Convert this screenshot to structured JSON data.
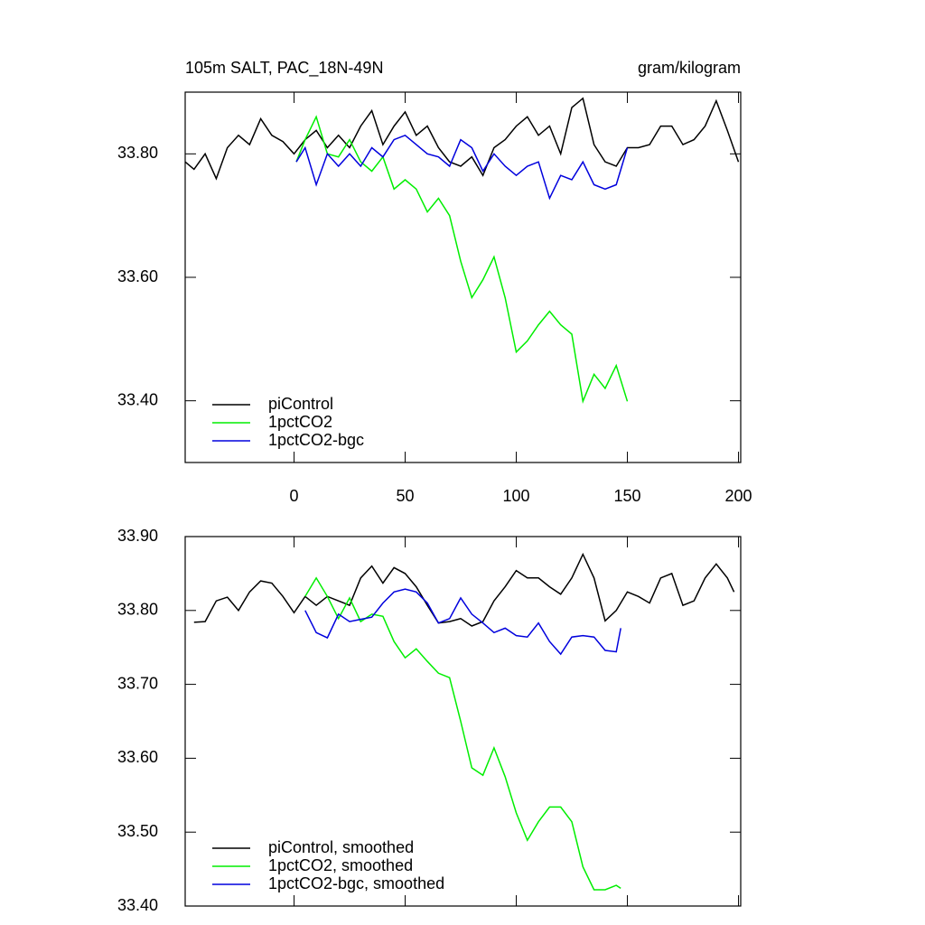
{
  "chart_data": [
    {
      "type": "line",
      "title": "105m SALT, PAC_18N-49N",
      "right_title": "gram/kilogram",
      "xlim": [
        -49,
        201
      ],
      "ylim": [
        33.3,
        33.9
      ],
      "xticks": [
        0,
        50,
        100,
        150,
        200
      ],
      "xtick_labels": true,
      "yticks": [
        {
          "value": 33.4,
          "label": "33.40"
        },
        {
          "value": 33.6,
          "label": "33.60"
        },
        {
          "value": 33.8,
          "label": "33.80"
        }
      ],
      "legend": "lower left",
      "series": [
        {
          "name": "piControl",
          "color": "#000000",
          "x": [
            -49,
            -45,
            -40,
            -35,
            -30,
            -25,
            -20,
            -15,
            -10,
            -5,
            0,
            5,
            10,
            15,
            20,
            25,
            30,
            35,
            40,
            45,
            50,
            55,
            60,
            65,
            70,
            75,
            80,
            85,
            90,
            95,
            100,
            105,
            110,
            115,
            120,
            125,
            130,
            135,
            140,
            145,
            150,
            155,
            160,
            165,
            170,
            175,
            180,
            185,
            190,
            195,
            200
          ],
          "values": [
            33.787,
            33.775,
            33.8,
            33.76,
            33.81,
            33.83,
            33.815,
            33.857,
            33.83,
            33.82,
            33.8,
            33.823,
            33.838,
            33.81,
            33.83,
            33.81,
            33.845,
            33.87,
            33.815,
            33.845,
            33.868,
            33.83,
            33.845,
            33.81,
            33.787,
            33.78,
            33.795,
            33.765,
            33.81,
            33.823,
            33.845,
            33.86,
            33.83,
            33.845,
            33.8,
            33.875,
            33.89,
            33.815,
            33.787,
            33.78,
            33.81,
            33.81,
            33.815,
            33.845,
            33.845,
            33.815,
            33.823,
            33.845,
            33.886,
            33.838,
            33.787
          ]
        },
        {
          "name": "1pctCO2",
          "color": "#00ee00",
          "x": [
            1,
            5,
            10,
            15,
            20,
            25,
            30,
            35,
            40,
            45,
            50,
            55,
            60,
            65,
            70,
            75,
            80,
            85,
            90,
            95,
            100,
            105,
            110,
            115,
            120,
            125,
            130,
            135,
            140,
            145,
            150
          ],
          "values": [
            33.787,
            33.823,
            33.86,
            33.8,
            33.795,
            33.823,
            33.787,
            33.772,
            33.795,
            33.743,
            33.758,
            33.743,
            33.706,
            33.728,
            33.7,
            33.626,
            33.567,
            33.596,
            33.633,
            33.567,
            33.479,
            33.497,
            33.523,
            33.545,
            33.523,
            33.508,
            33.399,
            33.443,
            33.42,
            33.457,
            33.399
          ]
        },
        {
          "name": "1pctCO2-bgc",
          "color": "#0000dd",
          "x": [
            1,
            5,
            10,
            15,
            20,
            25,
            30,
            35,
            40,
            45,
            50,
            55,
            60,
            65,
            70,
            75,
            80,
            85,
            90,
            95,
            100,
            105,
            110,
            115,
            120,
            125,
            130,
            135,
            140,
            145,
            150
          ],
          "values": [
            33.787,
            33.81,
            33.75,
            33.8,
            33.78,
            33.8,
            33.78,
            33.81,
            33.795,
            33.823,
            33.83,
            33.815,
            33.8,
            33.795,
            33.78,
            33.823,
            33.81,
            33.772,
            33.8,
            33.78,
            33.765,
            33.78,
            33.787,
            33.728,
            33.765,
            33.758,
            33.787,
            33.75,
            33.743,
            33.75,
            33.81
          ]
        }
      ]
    },
    {
      "type": "line",
      "xlim": [
        -49,
        201
      ],
      "ylim": [
        33.4,
        33.9
      ],
      "xticks": [
        0,
        50,
        100,
        150,
        200
      ],
      "xtick_labels": false,
      "yticks": [
        {
          "value": 33.4,
          "label": "33.40"
        },
        {
          "value": 33.5,
          "label": "33.50"
        },
        {
          "value": 33.6,
          "label": "33.60"
        },
        {
          "value": 33.7,
          "label": "33.70"
        },
        {
          "value": 33.8,
          "label": "33.80"
        },
        {
          "value": 33.9,
          "label": "33.90"
        }
      ],
      "legend": "lower left",
      "series": [
        {
          "name": "piControl, smoothed",
          "color": "#000000",
          "x": [
            -45,
            -40,
            -35,
            -30,
            -25,
            -20,
            -15,
            -10,
            -5,
            0,
            5,
            10,
            15,
            20,
            25,
            30,
            35,
            40,
            45,
            50,
            55,
            60,
            65,
            70,
            75,
            80,
            85,
            90,
            95,
            100,
            105,
            110,
            115,
            120,
            125,
            130,
            135,
            140,
            145,
            150,
            155,
            160,
            165,
            170,
            175,
            180,
            185,
            190,
            195,
            198
          ],
          "values": [
            33.784,
            33.785,
            33.813,
            33.818,
            33.8,
            33.825,
            33.84,
            33.837,
            33.819,
            33.797,
            33.819,
            33.807,
            33.819,
            33.813,
            33.807,
            33.844,
            33.86,
            33.837,
            33.858,
            33.85,
            33.832,
            33.807,
            33.783,
            33.785,
            33.789,
            33.779,
            33.785,
            33.813,
            33.832,
            33.854,
            33.844,
            33.844,
            33.832,
            33.822,
            33.844,
            33.876,
            33.844,
            33.786,
            33.8,
            33.825,
            33.819,
            33.81,
            33.844,
            33.85,
            33.807,
            33.813,
            33.844,
            33.863,
            33.844,
            33.825
          ]
        },
        {
          "name": "1pctCO2, smoothed",
          "color": "#00ee00",
          "x": [
            5,
            10,
            15,
            20,
            25,
            30,
            35,
            40,
            45,
            50,
            55,
            60,
            65,
            70,
            75,
            80,
            85,
            90,
            95,
            100,
            105,
            110,
            115,
            120,
            125,
            130,
            135,
            140,
            145,
            147
          ],
          "values": [
            33.819,
            33.844,
            33.819,
            33.789,
            33.817,
            33.785,
            33.795,
            33.792,
            33.758,
            33.736,
            33.748,
            33.731,
            33.715,
            33.709,
            33.65,
            33.587,
            33.577,
            33.614,
            33.575,
            33.526,
            33.489,
            33.514,
            33.534,
            33.534,
            33.514,
            33.453,
            33.422,
            33.422,
            33.428,
            33.424
          ]
        },
        {
          "name": "1pctCO2-bgc, smoothed",
          "color": "#0000dd",
          "x": [
            5,
            10,
            15,
            20,
            25,
            30,
            35,
            40,
            45,
            50,
            55,
            60,
            65,
            70,
            75,
            80,
            85,
            90,
            95,
            100,
            105,
            110,
            115,
            120,
            125,
            130,
            135,
            140,
            145,
            147
          ],
          "values": [
            33.8,
            33.77,
            33.763,
            33.795,
            33.785,
            33.788,
            33.791,
            33.81,
            33.825,
            33.829,
            33.825,
            33.81,
            33.783,
            33.789,
            33.817,
            33.795,
            33.783,
            33.77,
            33.776,
            33.766,
            33.764,
            33.783,
            33.758,
            33.741,
            33.764,
            33.766,
            33.764,
            33.746,
            33.744,
            33.776
          ]
        }
      ]
    }
  ]
}
